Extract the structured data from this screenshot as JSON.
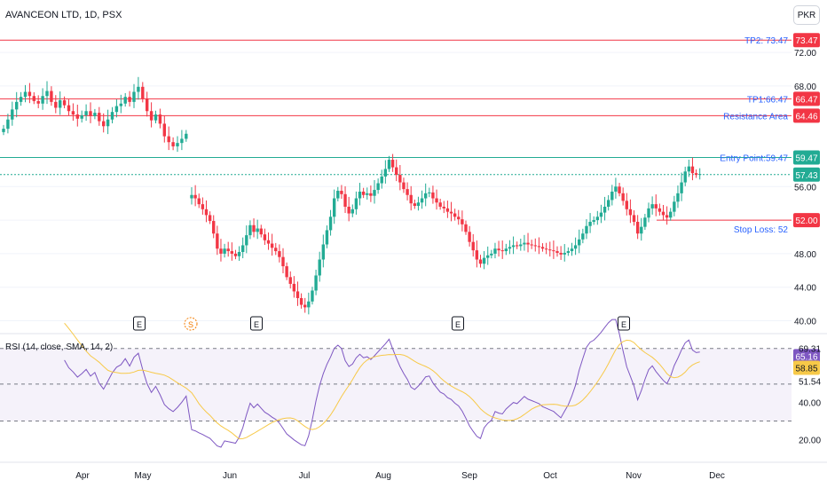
{
  "header": {
    "title": "AVANCEON LTD, 1D, PSX",
    "currency_button": "PKR"
  },
  "rsi": {
    "legend": "RSI (14, close, SMA, 14, 2)",
    "axis_ticks": [
      "69.31",
      "51.54",
      "40.00",
      "20.00"
    ],
    "value_label": "65.16",
    "sma_label": "58.85",
    "rsi_color": "#7e57c2",
    "sma_color": "#f7c948",
    "band_upper": 69.31,
    "band_lower": 30
  },
  "x_axis": {
    "months": [
      "Apr",
      "May",
      "Jun",
      "Jul",
      "Aug",
      "Sep",
      "Oct",
      "Nov",
      "Dec"
    ]
  },
  "earnings_markers": [
    "E",
    "S",
    "E",
    "E",
    "E"
  ],
  "levels": [
    {
      "label": "TP2: 73.47",
      "price_tag": "73.47",
      "value": 73.47,
      "color": "#f23645",
      "style": "solid",
      "from_start": true
    },
    {
      "label": "TP1:66.47",
      "price_tag": "66.47",
      "value": 66.47,
      "color": "#f23645",
      "style": "solid",
      "from_start": true
    },
    {
      "label": "Resistance Area",
      "price_tag": "64.46",
      "value": 64.46,
      "color": "#f23645",
      "style": "solid",
      "from_start": true
    },
    {
      "label": "Entry Point:59.47",
      "price_tag": "59.47",
      "value": 59.47,
      "color": "#22ab94",
      "style": "solid",
      "from_start": true
    },
    {
      "label": "",
      "price_tag": "57.43",
      "value": 57.43,
      "color": "#22ab94",
      "style": "dotted",
      "from_start": true
    },
    {
      "label": "Stop Loss: 52",
      "price_tag": "52.00",
      "value": 52.0,
      "color": "#f23645",
      "style": "solid",
      "from_start": false
    }
  ],
  "chart_data": {
    "type": "candlestick",
    "title": "AVANCEON LTD, 1D, PSX",
    "y_axis_ticks": [
      "72.00",
      "68.00",
      "56.00",
      "52.00",
      "48.00",
      "44.00",
      "40.00"
    ],
    "ylim": [
      38,
      76
    ],
    "up_color": "#22ab94",
    "down_color": "#f23645",
    "series": [
      {
        "segment": "Mar-May",
        "closes": [
          62.9,
          64.0,
          65.2,
          66.1,
          66.7,
          67.3,
          66.8,
          66.2,
          65.9,
          66.8,
          67.4,
          66.1,
          65.4,
          66.3,
          65.7,
          65.0,
          64.6,
          64.1,
          64.5,
          65.0,
          64.4,
          64.8,
          63.8,
          63.2,
          64.0,
          64.9,
          65.6,
          65.9,
          66.7,
          66.1,
          67.3,
          67.9,
          66.5,
          65.0,
          63.9,
          64.6,
          63.5,
          62.0,
          61.3,
          60.8,
          61.2,
          61.7,
          62.3
        ]
      },
      {
        "segment": "May-Jun",
        "closes": [
          55.0,
          54.6,
          53.9,
          53.3,
          52.6,
          51.9,
          50.4,
          48.6,
          48.0,
          48.6,
          48.3,
          48.0,
          47.7,
          48.2,
          49.0,
          50.2,
          51.4,
          50.6,
          51.0,
          50.3,
          49.6,
          49.2,
          48.7,
          48.3,
          47.6,
          46.5,
          45.2,
          44.4,
          43.5,
          42.7,
          41.9,
          41.6,
          42.3,
          43.6,
          45.4,
          47.3,
          49.1,
          50.8,
          52.4,
          54.6,
          55.5,
          55.1,
          53.6,
          52.8,
          53.3,
          54.6,
          55.4,
          55.0,
          55.2,
          54.9,
          55.6,
          56.4,
          57.2,
          58.1,
          59.2,
          58.3,
          57.4,
          56.5,
          55.7,
          55.0,
          54.0,
          53.7,
          54.1,
          54.6,
          55.2,
          55.3,
          54.6,
          54.1,
          53.6,
          53.4,
          53.0,
          52.8,
          52.4,
          52.1,
          51.5,
          50.6,
          49.4,
          48.4,
          47.3,
          46.8,
          47.5,
          47.8,
          48.0,
          48.6,
          48.4,
          48.3,
          48.6,
          48.8,
          49.0,
          48.9,
          49.1,
          49.3,
          49.1,
          49.0,
          48.9,
          48.8,
          48.6,
          48.5,
          48.4,
          48.3,
          48.1,
          47.9,
          48.1,
          48.3,
          48.6,
          49.0,
          49.7,
          50.4,
          51.3,
          51.8,
          52.0,
          52.4,
          52.9,
          53.6,
          54.4,
          55.4,
          56.0,
          55.2,
          54.3,
          53.3,
          52.6,
          51.8,
          50.4,
          51.2,
          52.3,
          53.4,
          53.9,
          53.4,
          53.0,
          52.6,
          52.3,
          53.0,
          54.2,
          55.2,
          56.5,
          57.8,
          58.4,
          57.6,
          57.4,
          57.5
        ]
      }
    ]
  }
}
